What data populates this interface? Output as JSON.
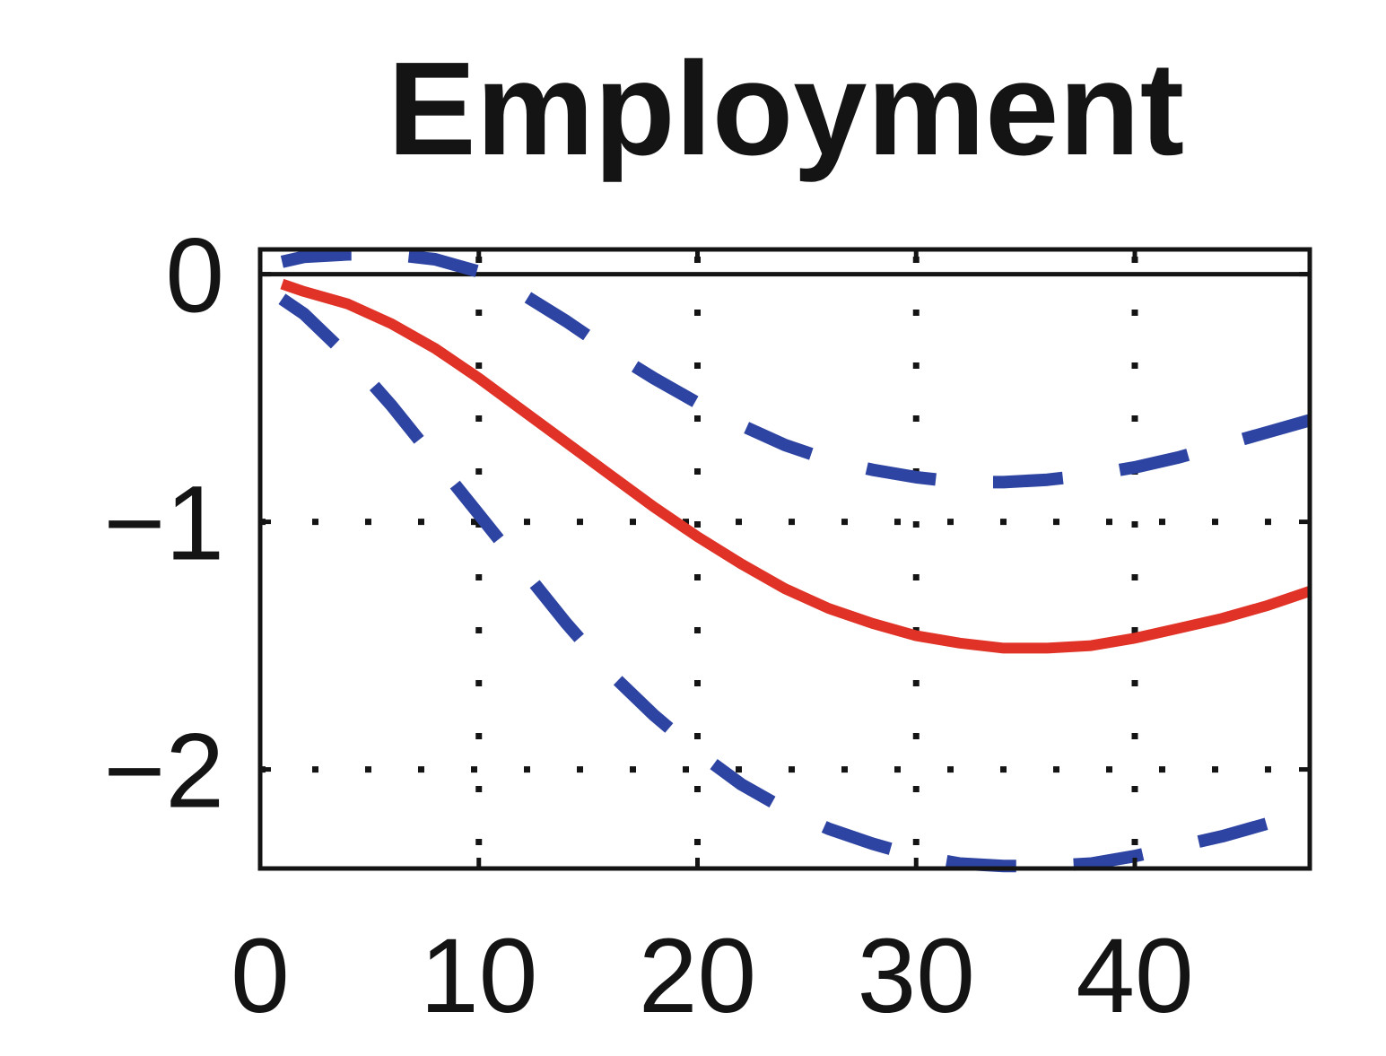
{
  "chart_data": {
    "type": "line",
    "title": "Employment",
    "xlabel": "",
    "ylabel": "",
    "xlim": [
      0,
      48
    ],
    "ylim": [
      -2.4,
      0.1
    ],
    "xticks": [
      0,
      10,
      20,
      30,
      40
    ],
    "xtick_labels": [
      "0",
      "10",
      "20",
      "30",
      "40"
    ],
    "yticks": [
      0,
      -1,
      -2
    ],
    "ytick_labels": [
      "0",
      "−1",
      "−2"
    ],
    "grid": true,
    "zero_line": true,
    "series": [
      {
        "style": "solid",
        "color": "#e03226",
        "x": [
          1,
          2,
          4,
          6,
          8,
          10,
          12,
          14,
          16,
          18,
          20,
          22,
          24,
          26,
          28,
          30,
          32,
          34,
          36,
          38,
          40,
          42,
          44,
          46,
          48
        ],
        "y": [
          -0.04,
          -0.07,
          -0.12,
          -0.2,
          -0.3,
          -0.42,
          -0.55,
          -0.68,
          -0.81,
          -0.94,
          -1.06,
          -1.17,
          -1.27,
          -1.35,
          -1.41,
          -1.46,
          -1.49,
          -1.51,
          -1.51,
          -1.5,
          -1.47,
          -1.43,
          -1.39,
          -1.34,
          -1.28
        ]
      },
      {
        "style": "dashed",
        "color": "#2e44a2",
        "x": [
          1,
          2,
          4,
          6,
          8,
          10,
          12,
          14,
          16,
          18,
          20,
          22,
          24,
          26,
          28,
          30,
          32,
          34,
          36,
          38,
          40,
          42,
          44,
          46,
          48
        ],
        "y": [
          0.05,
          0.07,
          0.08,
          0.08,
          0.06,
          0.01,
          -0.08,
          -0.19,
          -0.31,
          -0.42,
          -0.52,
          -0.61,
          -0.69,
          -0.75,
          -0.79,
          -0.82,
          -0.84,
          -0.84,
          -0.83,
          -0.81,
          -0.78,
          -0.74,
          -0.69,
          -0.64,
          -0.59
        ]
      },
      {
        "style": "dashed",
        "color": "#2e44a2",
        "x": [
          1,
          2,
          4,
          6,
          8,
          10,
          12,
          14,
          16,
          18,
          20,
          22,
          24,
          26,
          28,
          30,
          32,
          34,
          36,
          38,
          40,
          42,
          44,
          46,
          48
        ],
        "y": [
          -0.1,
          -0.16,
          -0.33,
          -0.53,
          -0.75,
          -0.97,
          -1.19,
          -1.41,
          -1.61,
          -1.78,
          -1.93,
          -2.06,
          -2.16,
          -2.24,
          -2.3,
          -2.35,
          -2.38,
          -2.39,
          -2.39,
          -2.38,
          -2.35,
          -2.31,
          -2.27,
          -2.22,
          -2.17
        ]
      }
    ]
  }
}
